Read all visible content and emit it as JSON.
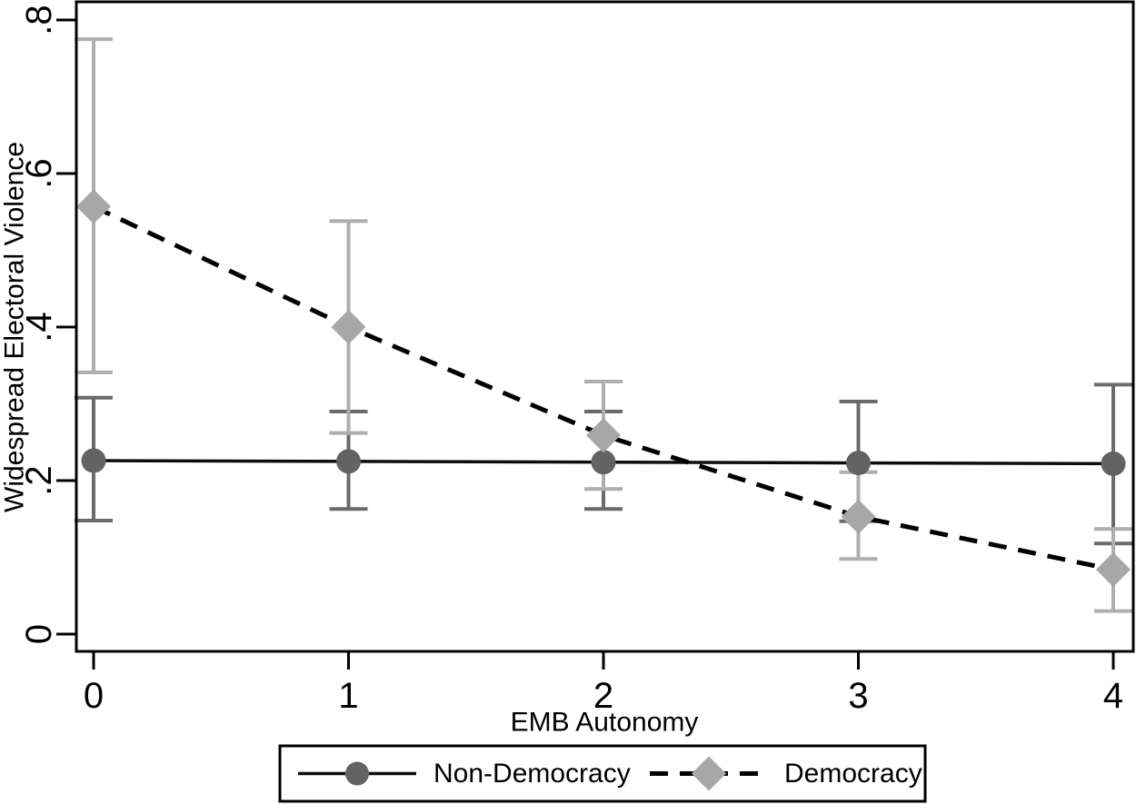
{
  "chart_data": {
    "type": "line",
    "title": "",
    "xlabel": "EMB Autonomy",
    "ylabel": "Widespread Electoral Violence",
    "x": [
      0,
      1,
      2,
      3,
      4
    ],
    "xlim": [
      -0.07,
      4.08
    ],
    "ylim": [
      -0.02,
      0.825
    ],
    "yticks": [
      0,
      0.2,
      0.4,
      0.6,
      0.8
    ],
    "ytick_labels": [
      "0",
      ".2",
      ".4",
      ".6",
      ".8"
    ],
    "xticks": [
      0,
      1,
      2,
      3,
      4
    ],
    "xtick_labels": [
      "0",
      "1",
      "2",
      "3",
      "4"
    ],
    "grid": false,
    "legend_position": "bottom-outside",
    "axis_color": "#000000",
    "series": [
      {
        "name": "Non-Democracy",
        "marker": "circle",
        "line_style": "solid",
        "marker_color": "#636363",
        "line_color": "#0d0d0d",
        "errorbar_color": "#6b6b6b",
        "values": [
          0.226,
          0.225,
          0.224,
          0.223,
          0.222
        ],
        "ci_low": [
          0.148,
          0.163,
          0.163,
          0.147,
          0.118
        ],
        "ci_high": [
          0.308,
          0.29,
          0.29,
          0.303,
          0.325
        ]
      },
      {
        "name": "Democracy",
        "marker": "diamond",
        "line_style": "dashed",
        "marker_color": "#a7a7a7",
        "line_color": "#000000",
        "errorbar_color": "#aeaeae",
        "values": [
          0.557,
          0.4,
          0.259,
          0.153,
          0.084
        ],
        "ci_low": [
          0.341,
          0.262,
          0.189,
          0.098,
          0.03
        ],
        "ci_high": [
          0.775,
          0.538,
          0.329,
          0.211,
          0.137
        ]
      }
    ]
  }
}
